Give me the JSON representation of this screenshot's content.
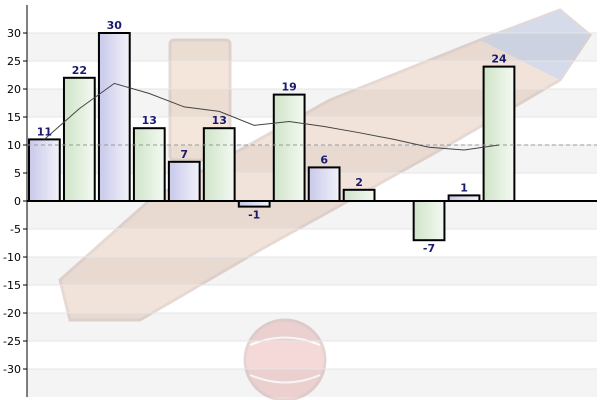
{
  "chart_data": {
    "type": "bar",
    "title": "",
    "xlabel": "",
    "ylabel": "",
    "ylim": [
      -35,
      35
    ],
    "yticks": [
      30,
      25,
      20,
      15,
      10,
      5,
      0,
      -5,
      -10,
      -15,
      -20,
      -25,
      -30
    ],
    "grid": true,
    "series": [
      {
        "values": [
          11,
          22,
          30,
          13,
          7,
          13,
          -1,
          19,
          6,
          2,
          null,
          -7,
          1,
          24
        ],
        "labels": [
          "11",
          "22",
          "30",
          "13",
          "7",
          "13",
          "-1",
          "19",
          "6",
          "2",
          "",
          "-7",
          "1",
          "24"
        ],
        "fill_colors": [
          "#dcdcf0",
          "#dfeeda",
          "#dcdcf0",
          "#dfeeda",
          "#dcdcf0",
          "#dfeeda",
          "#dcdcf0",
          "#dfeeda",
          "#dcdcf0",
          "#dfeeda",
          "#dcdcf0",
          "#dfeeda",
          "#dcdcf0",
          "#dfeeda"
        ]
      }
    ],
    "trend_line": {
      "values": [
        11,
        16.5,
        21,
        19.2,
        16.8,
        16,
        13.5,
        14.2,
        13.3,
        12.2,
        11,
        9.6,
        9.1,
        10
      ],
      "color": "#444444"
    },
    "reference_line": {
      "value": 10,
      "color": "#999999"
    },
    "colors": {
      "bar_outline": "#000000",
      "axis": "#000000",
      "band_light": "#f4f4f4",
      "band_white": "#ffffff"
    }
  }
}
